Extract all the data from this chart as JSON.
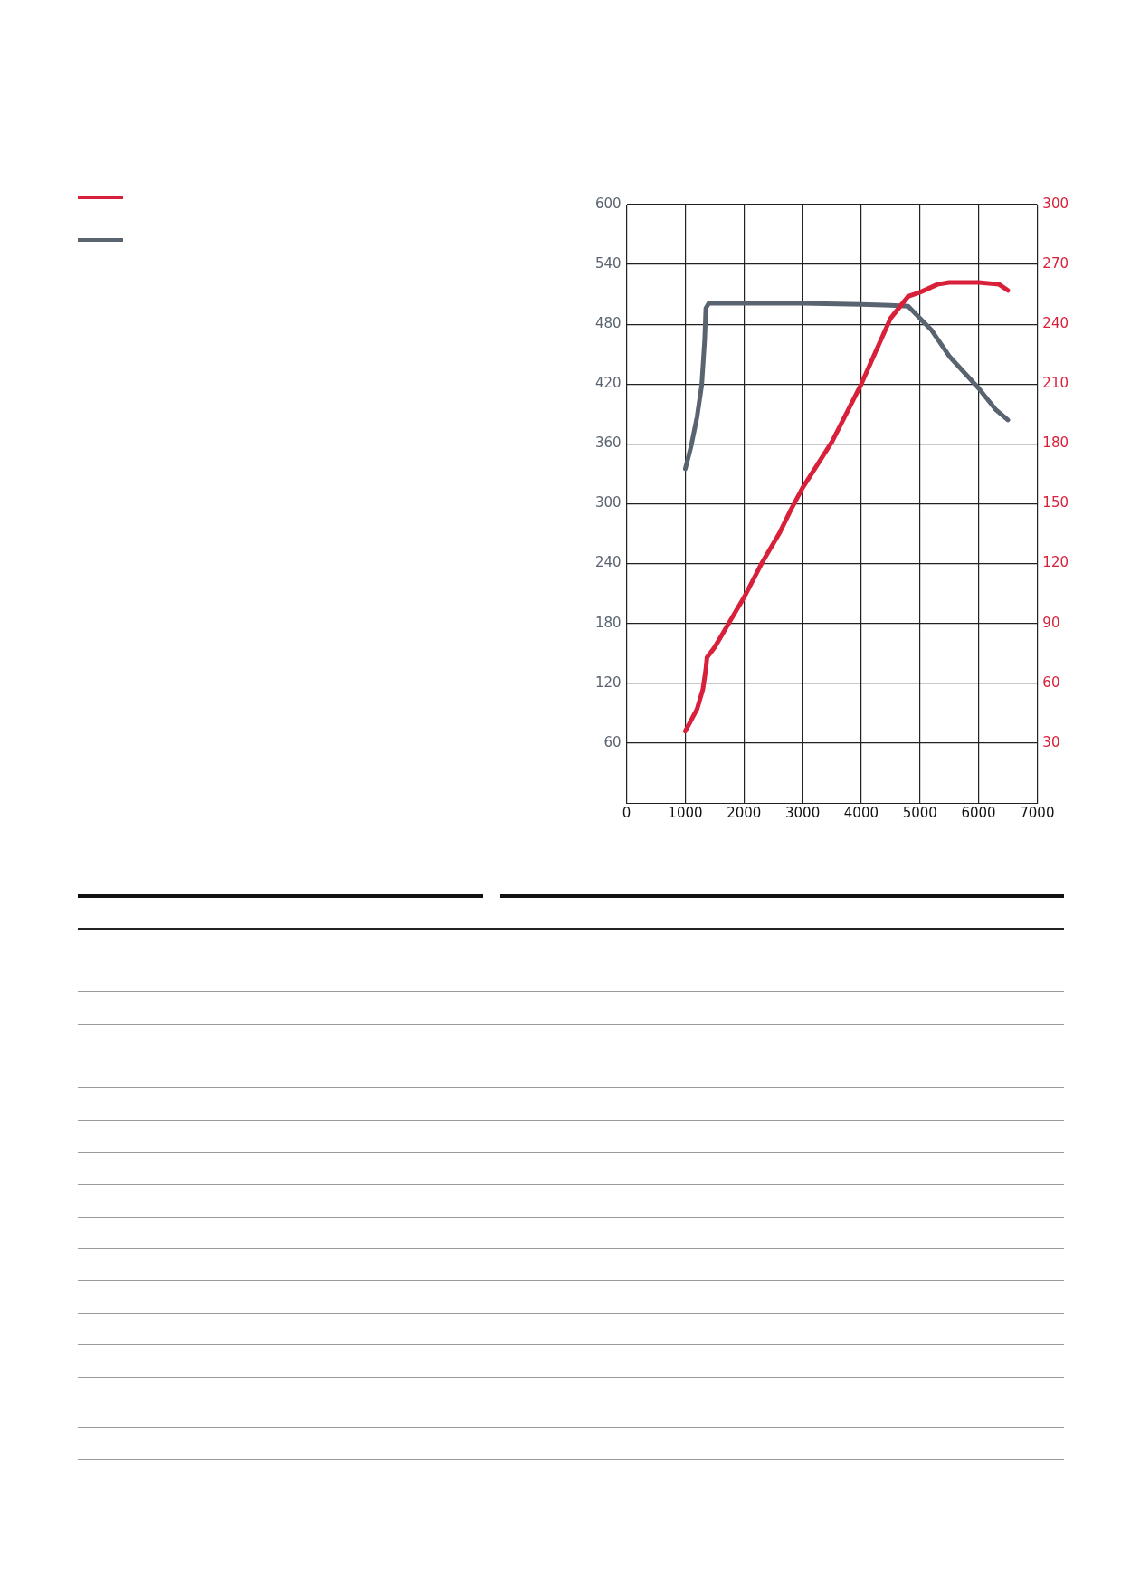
{
  "chart_data": {
    "type": "line",
    "xlim": [
      0,
      7000
    ],
    "xticks": [
      0,
      1000,
      2000,
      3000,
      4000,
      5000,
      6000,
      7000
    ],
    "ylim": [
      0,
      600
    ],
    "yticks": [
      60,
      120,
      180,
      240,
      300,
      360,
      420,
      480,
      540,
      600
    ],
    "y2lim": [
      0,
      300
    ],
    "y2ticks": [
      30,
      60,
      90,
      120,
      150,
      180,
      210,
      240,
      270,
      300
    ],
    "grid": true,
    "marker": "none",
    "line_style": "solid",
    "series": [
      {
        "color": "#d9203a",
        "axis": "y2",
        "x": [
          1000,
          1200,
          1300,
          1350,
          1370,
          1500,
          1700,
          2000,
          2300,
          2600,
          2800,
          3000,
          3500,
          4000,
          4500,
          4800,
          5000,
          5300,
          5500,
          6000,
          6350,
          6500
        ],
        "values": [
          36,
          47,
          57,
          67,
          73,
          78,
          88,
          103,
          120,
          135,
          147,
          158,
          181,
          210,
          243,
          254,
          256,
          260,
          261,
          261,
          260,
          257
        ]
      },
      {
        "color": "#5a6370",
        "x": [
          1000,
          1100,
          1200,
          1280,
          1330,
          1350,
          1400,
          2000,
          3000,
          4000,
          4500,
          4800,
          5000,
          5200,
          5500,
          6000,
          6300,
          6500
        ],
        "values": [
          335,
          358,
          387,
          419,
          464,
          496,
          501,
          501,
          501,
          500,
          499,
          498,
          486,
          474,
          448,
          416,
          394,
          384
        ]
      }
    ]
  }
}
